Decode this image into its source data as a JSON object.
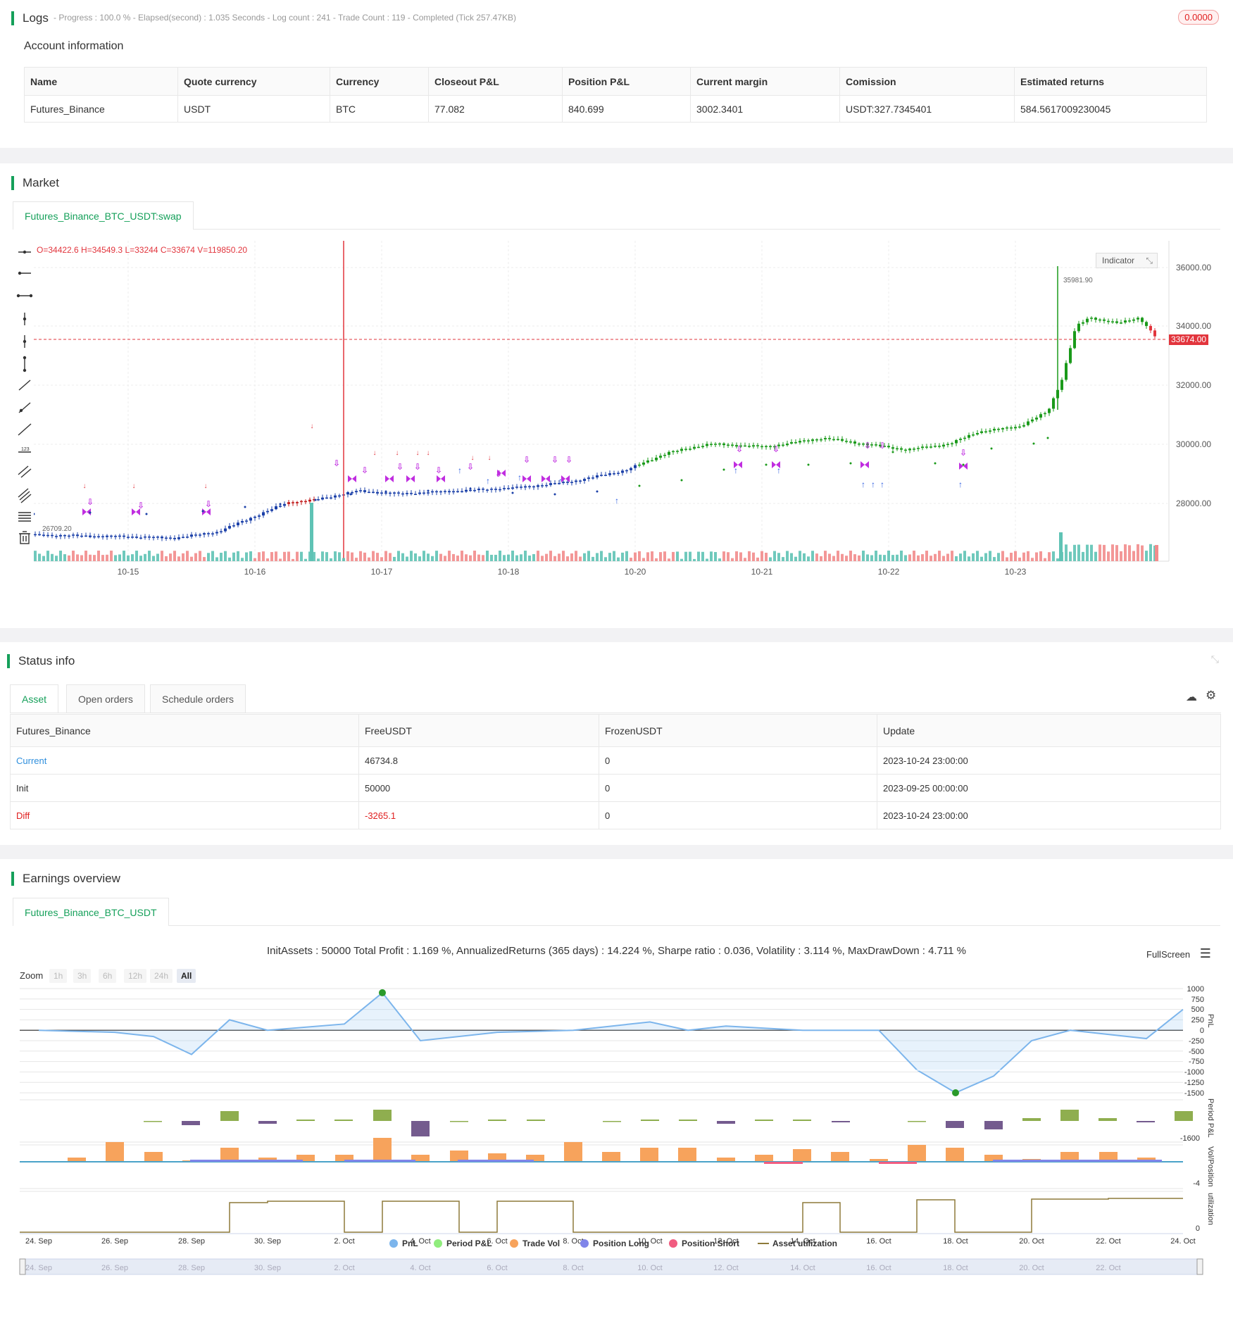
{
  "logs": {
    "title": "Logs",
    "meta": "- Progress : 100.0 % - Elapsed(second) : 1.035  Seconds - Log count : 241 - Trade Count : 119 - Completed (Tick 257.47KB)",
    "badge": "0.0000"
  },
  "account": {
    "title": "Account information",
    "headers": [
      "Name",
      "Quote currency",
      "Currency",
      "Closeout P&L",
      "Position P&L",
      "Current margin",
      "Comission",
      "Estimated returns"
    ],
    "row": [
      "Futures_Binance",
      "USDT",
      "BTC",
      "77.082",
      "840.699",
      "3002.3401",
      "USDT:327.7345401",
      "584.5617009230045"
    ]
  },
  "market": {
    "title": "Market",
    "tab": "Futures_Binance_BTC_USDT:swap",
    "ohlc": "O=34422.6 H=34549.3 L=33244 C=33674 V=119850.20",
    "indicator_button": "Indicator",
    "price_labels": [
      "36000.00",
      "34000.00",
      "32000.00",
      "30000.00",
      "28000.00"
    ],
    "current_price": "33674.00",
    "high_label": "35981.90",
    "low_label": "26709.20",
    "date_labels": [
      "10-15",
      "10-16",
      "10-17",
      "10-18",
      "10-20",
      "10-21",
      "10-22",
      "10-23"
    ],
    "tools": [
      "horizontal-line-icon",
      "horizontal-ray-icon",
      "extended-line-icon",
      "vertical-line-icon",
      "vertical-segment-icon",
      "vertical-arrow-icon",
      "trend-line-icon",
      "ray-icon",
      "extended-trend-icon",
      "price-range-icon",
      "parallel-channel-icon",
      "pitchfork-icon",
      "fibonacci-icon",
      "trash-icon"
    ]
  },
  "status": {
    "title": "Status info",
    "tabs": [
      "Asset",
      "Open orders",
      "Schedule orders"
    ],
    "headers": [
      "Futures_Binance",
      "FreeUSDT",
      "FrozenUSDT",
      "Update"
    ],
    "rows": [
      {
        "label": "Current",
        "free": "46734.8",
        "frozen": "0",
        "update": "2023-10-24 23:00:00"
      },
      {
        "label": "Init",
        "free": "50000",
        "frozen": "0",
        "update": "2023-09-25 00:00:00"
      },
      {
        "label": "Diff",
        "free": "-3265.1",
        "frozen": "0",
        "update": "2023-10-24 23:00:00"
      }
    ]
  },
  "earnings": {
    "title": "Earnings overview",
    "tab": "Futures_Binance_BTC_USDT",
    "summary": "InitAssets : 50000 Total Profit : 1.169 %, AnnualizedReturns (365 days) : 14.224 %, Sharpe ratio : 0.036, Volatility : 3.114 %, MaxDrawDown : 4.711 %",
    "fullscreen": "FullScreen",
    "zoom_label": "Zoom",
    "zoom_buttons": [
      "1h",
      "3h",
      "6h",
      "12h",
      "24h",
      "All"
    ],
    "pnl_axis": [
      "1000",
      "750",
      "500",
      "250",
      "0",
      "-250",
      "-500",
      "-750",
      "-1000",
      "-1250",
      "-1500"
    ],
    "axis_titles": [
      "PnL",
      "Period P&L",
      "Vol/Position",
      "utilization"
    ],
    "period_axis_label": "-1600",
    "vol_axis_label": "-4",
    "util_axis_label": "0",
    "date_labels": [
      "24. Sep",
      "26. Sep",
      "28. Sep",
      "30. Sep",
      "2. Oct",
      "4. Oct",
      "6. Oct",
      "8. Oct",
      "10. Oct",
      "12. Oct",
      "14. Oct",
      "16. Oct",
      "18. Oct",
      "20. Oct",
      "22. Oct",
      "24. Oct"
    ],
    "legend": [
      {
        "name": "PnL",
        "color": "#7cb5ec"
      },
      {
        "name": "Period P&L",
        "color": "#90ed7d"
      },
      {
        "name": "Trade Vol",
        "color": "#f7a35c"
      },
      {
        "name": "Position Long",
        "color": "#8085e9"
      },
      {
        "name": "Position Short",
        "color": "#f15c80"
      },
      {
        "name": "Asset utilization",
        "color": "#8d7a3a"
      }
    ],
    "navigator_labels": [
      "24. Sep",
      "26. Sep",
      "28. Sep",
      "30. Sep",
      "2. Oct",
      "4. Oct",
      "6. Oct",
      "8. Oct",
      "10. Oct",
      "12. Oct",
      "14. Oct",
      "16. Oct",
      "18. Oct",
      "20. Oct",
      "22. Oct"
    ]
  },
  "chart_data": {
    "type": "line",
    "x": [
      "24. Sep",
      "26. Sep",
      "27. Sep",
      "28. Sep",
      "29. Sep",
      "30. Sep",
      "2. Oct",
      "3. Oct",
      "4. Oct",
      "6. Oct",
      "8. Oct",
      "10. Oct",
      "11. Oct",
      "12. Oct",
      "14. Oct",
      "16. Oct",
      "17. Oct",
      "18. Oct",
      "19. Oct",
      "20. Oct",
      "21. Oct",
      "23. Oct",
      "24. Oct"
    ],
    "series": [
      {
        "name": "PnL",
        "values": [
          0,
          -50,
          -150,
          -580,
          250,
          0,
          150,
          900,
          -250,
          -50,
          0,
          200,
          0,
          100,
          0,
          0,
          -950,
          -1500,
          -1100,
          -250,
          0,
          -200,
          500
        ]
      }
    ],
    "ylim": [
      -1500,
      1000
    ]
  }
}
